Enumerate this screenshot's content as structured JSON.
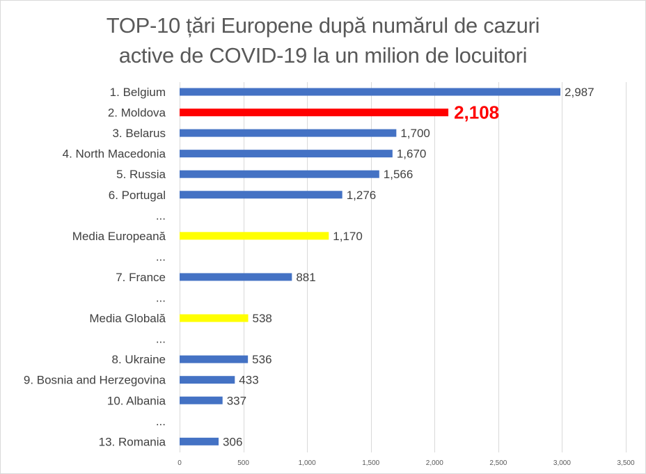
{
  "chart_data": {
    "type": "bar",
    "orientation": "horizontal",
    "title": "TOP-10 țări Europene după numărul de cazuri active de COVID-19 la un milion de locuitori",
    "title_lines": [
      "TOP-10 țări Europene după numărul de cazuri",
      "active de COVID-19 la un milion de locuitori"
    ],
    "xlabel": "",
    "ylabel": "",
    "xlim": [
      0,
      3500
    ],
    "xticks": [
      0,
      500,
      1000,
      1500,
      2000,
      2500,
      3000,
      3500
    ],
    "xtick_labels": [
      "0",
      "500",
      "1,000",
      "1,500",
      "2,000",
      "2,500",
      "3,000",
      "3,500"
    ],
    "grid": "vertical",
    "legend": "none",
    "categories": [
      "1. Belgium",
      "2. Moldova",
      "3. Belarus",
      "4. North Macedonia",
      "5. Russia",
      "6. Portugal",
      "...",
      "Media Europeană",
      "...",
      "7. France",
      "...",
      "Media Globală",
      "...",
      "8. Ukraine",
      "9. Bosnia and Herzegovina",
      "10. Albania",
      "...",
      "13. Romania"
    ],
    "values": [
      2987,
      2108,
      1700,
      1670,
      1566,
      1276,
      null,
      1170,
      null,
      881,
      null,
      538,
      null,
      536,
      433,
      337,
      null,
      306
    ],
    "value_labels": [
      "2,987",
      "2,108",
      "1,700",
      "1,670",
      "1,566",
      "1,276",
      "",
      "1,170",
      "",
      "881",
      "",
      "538",
      "",
      "536",
      "433",
      "337",
      "",
      "306"
    ],
    "bar_colors": [
      "#4472c4",
      "#ff0000",
      "#4472c4",
      "#4472c4",
      "#4472c4",
      "#4472c4",
      null,
      "#ffff00",
      null,
      "#4472c4",
      null,
      "#ffff00",
      null,
      "#4472c4",
      "#4472c4",
      "#4472c4",
      null,
      "#4472c4"
    ],
    "highlighted_index": 1
  },
  "colors": {
    "default_bar": "#4472c4",
    "highlight_bar": "#ff0000",
    "average_bar": "#ffff00",
    "gridline": "#d9d9d9",
    "text": "#404040"
  }
}
